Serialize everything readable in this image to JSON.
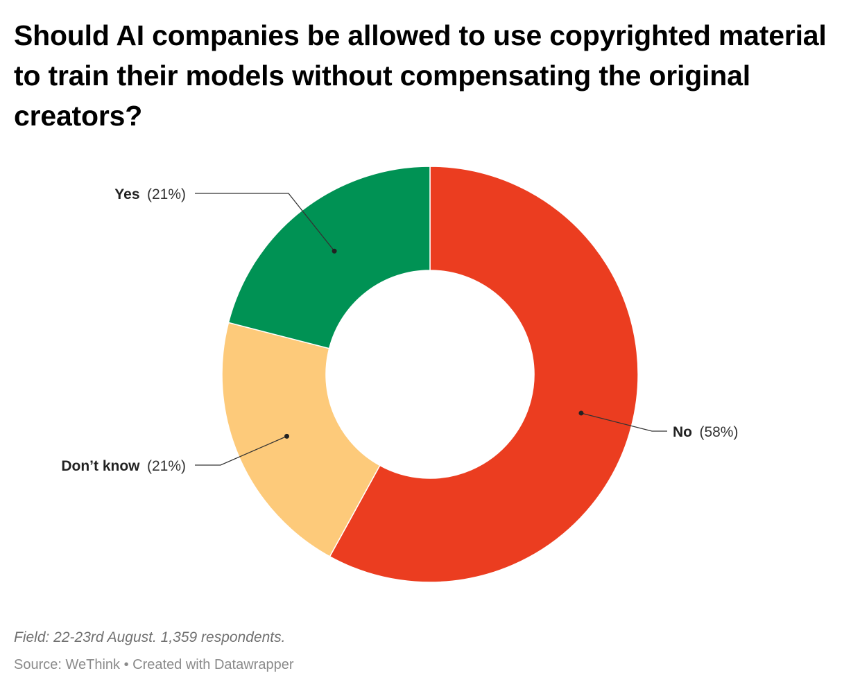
{
  "title": "Should AI companies be allowed to use copyrighted material to train their models without compensating the original creators?",
  "notes": "Field: 22-23rd August. 1,359 respondents.",
  "footer": {
    "source": "Source: WeThink",
    "separator": " • ",
    "credit": "Created with Datawrapper"
  },
  "chart_data": {
    "type": "pie",
    "variant": "donut",
    "title": "Should AI companies be allowed to use copyrighted material to train their models without compensating the original creators?",
    "slices": [
      {
        "label": "No",
        "value": 58,
        "display": "(58%)",
        "color": "#EB3D20"
      },
      {
        "label": "Don’t know",
        "value": 21,
        "display": "(21%)",
        "color": "#FDCA7A"
      },
      {
        "label": "Yes",
        "value": 21,
        "display": "(21%)",
        "color": "#009254"
      }
    ],
    "unit": "%",
    "legend": "none",
    "labels": "outside-with-leader-lines"
  }
}
